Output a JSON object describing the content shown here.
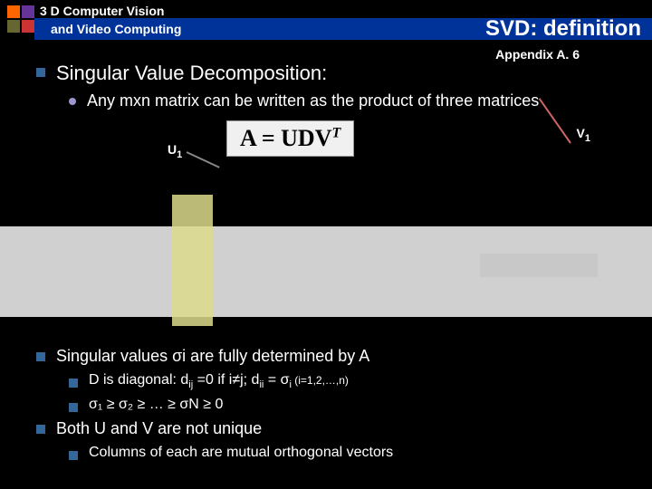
{
  "header": {
    "line1": "3 D Computer Vision",
    "line2": "and Video Computing",
    "title": "SVD: definition",
    "logo_colors": [
      "#ff6600",
      "#663399",
      "#666633",
      "#cc3333"
    ]
  },
  "appendix": "Appendix A. 6",
  "main_heading": "Singular Value Decomposition:",
  "sub_bullet": "Any mxn matrix can be written as the product of three matrices",
  "formula": {
    "text": "A = UDV",
    "sup": "T",
    "bg": "#f0f0f0"
  },
  "labels": {
    "u1": "U",
    "u1_sub": "1",
    "v1": "V",
    "v1_sub": "1"
  },
  "diagram": {
    "band_color": "#d0d0d0",
    "highlight_color": "#dcdc8c"
  },
  "lower": {
    "b1": "Singular values σi are fully determined by A",
    "b1a_pre": "D is diagonal:  d",
    "b1a_sub1": "ij",
    "b1a_mid": " =0 if i≠j; d",
    "b1a_sub2": "ii",
    "b1a_post": " = σ",
    "b1a_sub3": "i",
    "b1a_tail": "  (i=1,2,…,n)",
    "b1b": "σ₁ ≥ σ₂ ≥ … ≥ σN ≥ 0",
    "b2": "Both U and V are not unique",
    "b2a": "Columns of each are mutual orthogonal vectors"
  }
}
